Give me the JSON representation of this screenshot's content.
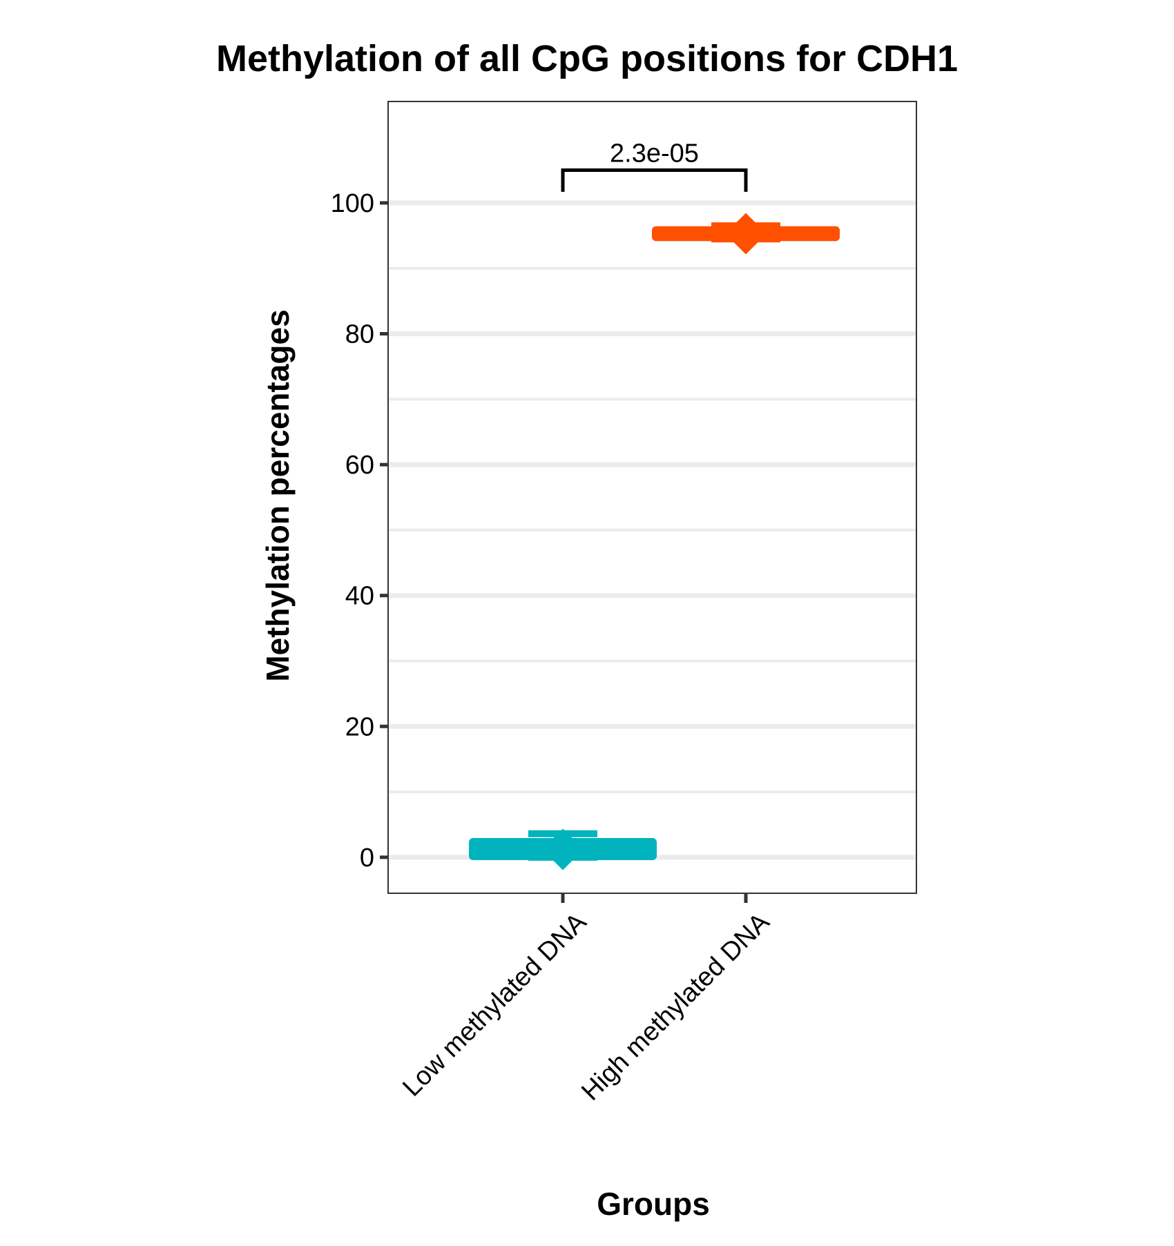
{
  "chart_data": {
    "type": "box",
    "title": "Methylation of all CpG positions for CDH1",
    "xlabel": "Groups",
    "ylabel": "Methylation percentages",
    "ylim": [
      -5.5,
      115.5
    ],
    "yticks": [
      0,
      20,
      40,
      60,
      80,
      100
    ],
    "minor_gridlines": [
      10,
      30,
      50,
      70,
      90
    ],
    "grid": "horizontal",
    "categories": [
      "Low methylated DNA",
      "High methylated DNA"
    ],
    "series": [
      {
        "category": "Low methylated DNA",
        "color": "#00B3BD",
        "whisker_low": 0.0,
        "q1": 0.2,
        "median": 0.6,
        "q3": 2.3,
        "whisker_high": 3.6,
        "mean": 1.2
      },
      {
        "category": "High methylated DNA",
        "color": "#FF5000",
        "whisker_low": 94.5,
        "q1": 94.8,
        "median": 95.2,
        "q3": 95.8,
        "whisker_high": 96.5,
        "mean": 95.3
      }
    ],
    "annotations": [
      {
        "text": "2.3e-05",
        "between": [
          "Low methylated DNA",
          "High methylated DNA"
        ],
        "y": 105
      }
    ]
  }
}
